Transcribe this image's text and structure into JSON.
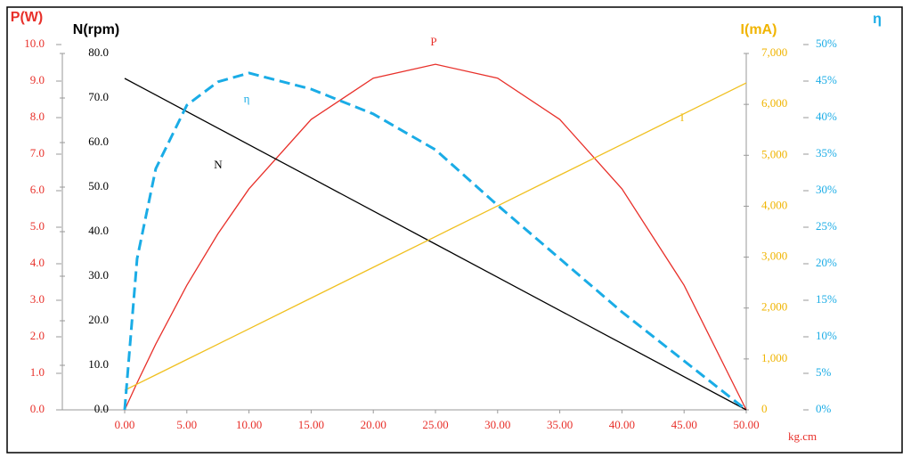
{
  "chart_data": {
    "type": "line",
    "x_label": "kg.cm",
    "x": [
      0,
      1,
      2.5,
      5,
      7.5,
      10,
      15,
      20,
      25,
      30,
      35,
      40,
      45,
      50
    ],
    "xlim": [
      0,
      50
    ],
    "xticks": [
      {
        "value": 0,
        "label": "0.00"
      },
      {
        "value": 5,
        "label": "5.00"
      },
      {
        "value": 10,
        "label": "10.00"
      },
      {
        "value": 15,
        "label": "15.00"
      },
      {
        "value": 20,
        "label": "20.00"
      },
      {
        "value": 25,
        "label": "25.00"
      },
      {
        "value": 30,
        "label": "30.00"
      },
      {
        "value": 35,
        "label": "35.00"
      },
      {
        "value": 40,
        "label": "40.00"
      },
      {
        "value": 45,
        "label": "45.00"
      },
      {
        "value": 50,
        "label": "50.00"
      }
    ],
    "axes": [
      {
        "title": "P(W)",
        "color": "#e8302a",
        "lim": [
          0,
          10
        ],
        "ticks": [
          {
            "value": 0,
            "label": "0.0"
          },
          {
            "value": 1,
            "label": "1.0"
          },
          {
            "value": 2,
            "label": "2.0"
          },
          {
            "value": 3,
            "label": "3.0"
          },
          {
            "value": 4,
            "label": "4.0"
          },
          {
            "value": 5,
            "label": "5.0"
          },
          {
            "value": 6,
            "label": "6.0"
          },
          {
            "value": 7,
            "label": "7.0"
          },
          {
            "value": 8,
            "label": "8.0"
          },
          {
            "value": 9,
            "label": "9.0"
          },
          {
            "value": 10,
            "label": "10.0"
          }
        ]
      },
      {
        "title": "N(rpm)",
        "color": "#000000",
        "lim": [
          0,
          80
        ],
        "ticks": [
          {
            "value": 0,
            "label": "0.0"
          },
          {
            "value": 10,
            "label": "10.0"
          },
          {
            "value": 20,
            "label": "20.0"
          },
          {
            "value": 30,
            "label": "30.0"
          },
          {
            "value": 40,
            "label": "40.0"
          },
          {
            "value": 50,
            "label": "50.0"
          },
          {
            "value": 60,
            "label": "60.0"
          },
          {
            "value": 70,
            "label": "70.0"
          },
          {
            "value": 80,
            "label": "80.0"
          }
        ]
      },
      {
        "title": "I(mA)",
        "color": "#f0b400",
        "lim": [
          0,
          7000
        ],
        "ticks": [
          0,
          {
            "value": 1000,
            "label": "1,000"
          },
          {
            "value": 2000,
            "label": "2,000"
          },
          {
            "value": 3000,
            "label": "3,000"
          },
          {
            "value": 4000,
            "label": "4,000"
          },
          {
            "value": 5000,
            "label": "5,000"
          },
          {
            "value": 6000,
            "label": "6,000"
          },
          {
            "value": 7000,
            "label": "7,000"
          }
        ]
      },
      {
        "title": "η",
        "color": "#1aace6",
        "lim": [
          0,
          50
        ],
        "ticks": [
          {
            "value": 0,
            "label": "0%"
          },
          {
            "value": 5,
            "label": "5%"
          },
          {
            "value": 10,
            "label": "10%"
          },
          {
            "value": 15,
            "label": "15%"
          },
          {
            "value": 20,
            "label": "20%"
          },
          {
            "value": 25,
            "label": "25%"
          },
          {
            "value": 30,
            "label": "30%"
          },
          {
            "value": 35,
            "label": "35%"
          },
          {
            "value": 40,
            "label": "40%"
          },
          {
            "value": 45,
            "label": "45%"
          },
          {
            "value": 50,
            "label": "50%"
          }
        ]
      }
    ],
    "series": [
      {
        "name": "P",
        "axis": 0,
        "color": "#e8302a",
        "dashed": false,
        "values": [
          0,
          0.74,
          1.8,
          3.41,
          4.82,
          6.05,
          7.95,
          9.08,
          9.46,
          9.08,
          7.95,
          6.05,
          3.41,
          0
        ]
      },
      {
        "name": "N",
        "axis": 1,
        "color": "#000000",
        "dashed": false,
        "values": [
          74.4,
          72.91,
          70.68,
          66.96,
          63.24,
          59.52,
          52.08,
          44.64,
          37.2,
          29.76,
          22.32,
          14.88,
          7.44,
          0
        ]
      },
      {
        "name": "I",
        "axis": 2,
        "color": "#f0c020",
        "dashed": false,
        "values": [
          385,
          506,
          687,
          989,
          1290,
          1592,
          2196,
          2800,
          3403,
          4007,
          4611,
          5214,
          5818,
          6422
        ]
      },
      {
        "name": "η",
        "axis": 3,
        "color": "#1aace6",
        "dashed": true,
        "values": [
          0,
          20.7,
          33,
          41.7,
          44.9,
          46.1,
          43.9,
          40.5,
          35.6,
          28,
          20.7,
          13.4,
          6.7,
          0
        ]
      }
    ]
  }
}
